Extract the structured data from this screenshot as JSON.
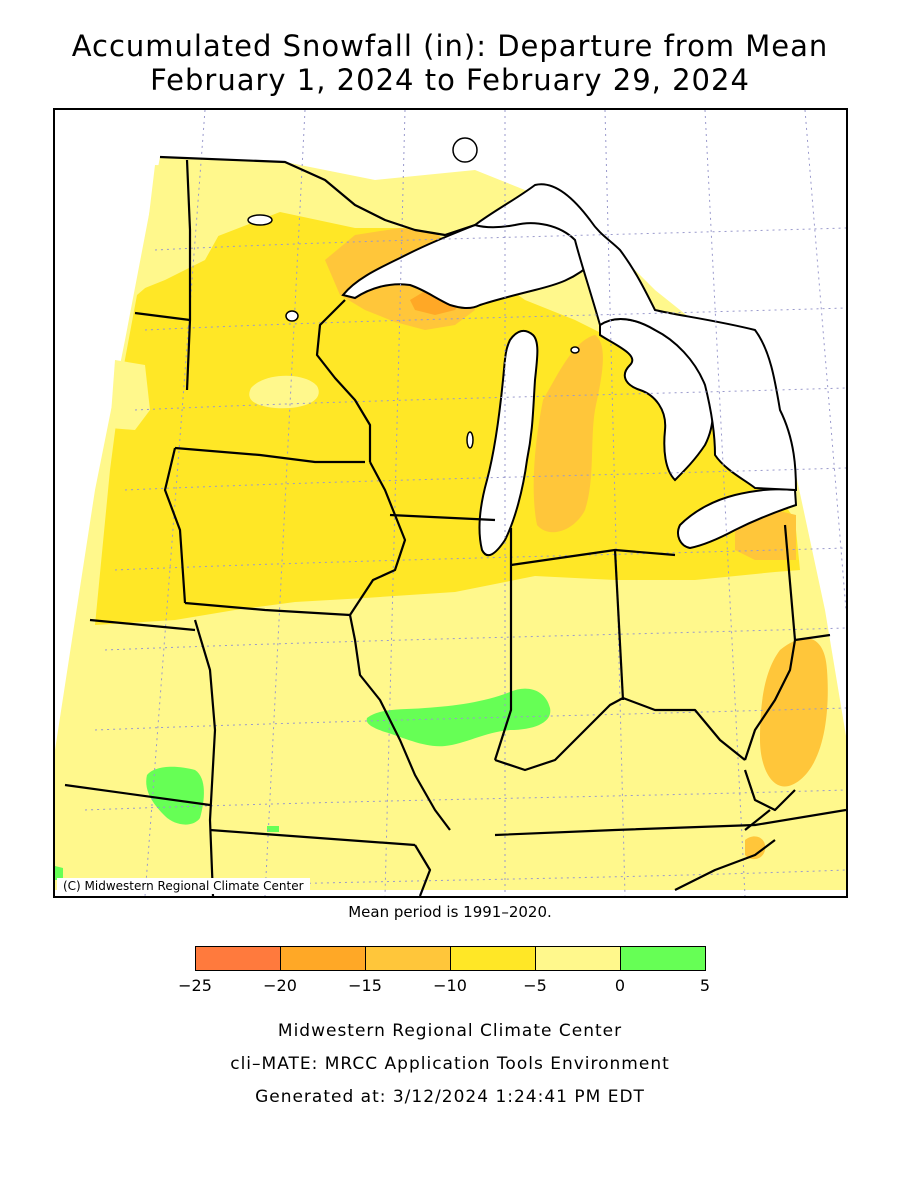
{
  "title": {
    "line1": "Accumulated Snowfall (in): Departure from Mean",
    "line2": "February 1, 2024 to February 29, 2024"
  },
  "map": {
    "copyright": "(C) Midwestern Regional Climate Center",
    "colors": {
      "land_default": "#FFF88C",
      "water": "#FFFFFF",
      "border": "#000000",
      "grid": "#9999CC"
    }
  },
  "mean_period": "Mean period is 1991–2020.",
  "legend": {
    "bins": [
      {
        "from": -25,
        "to": -20,
        "color": "#FF7A3D"
      },
      {
        "from": -20,
        "to": -15,
        "color": "#FFA826"
      },
      {
        "from": -15,
        "to": -10,
        "color": "#FFC63A"
      },
      {
        "from": -10,
        "to": -5,
        "color": "#FFE726"
      },
      {
        "from": -5,
        "to": 0,
        "color": "#FFF88C"
      },
      {
        "from": 0,
        "to": 5,
        "color": "#66FF55"
      }
    ],
    "labels": [
      "−25",
      "−20",
      "−15",
      "−10",
      "−5",
      "0",
      "5"
    ]
  },
  "footer": {
    "line1": "Midwestern Regional Climate Center",
    "line2": "cli–MATE: MRCC Application Tools Environment",
    "line3": "Generated at: 3/12/2024 1:24:41 PM EDT"
  }
}
